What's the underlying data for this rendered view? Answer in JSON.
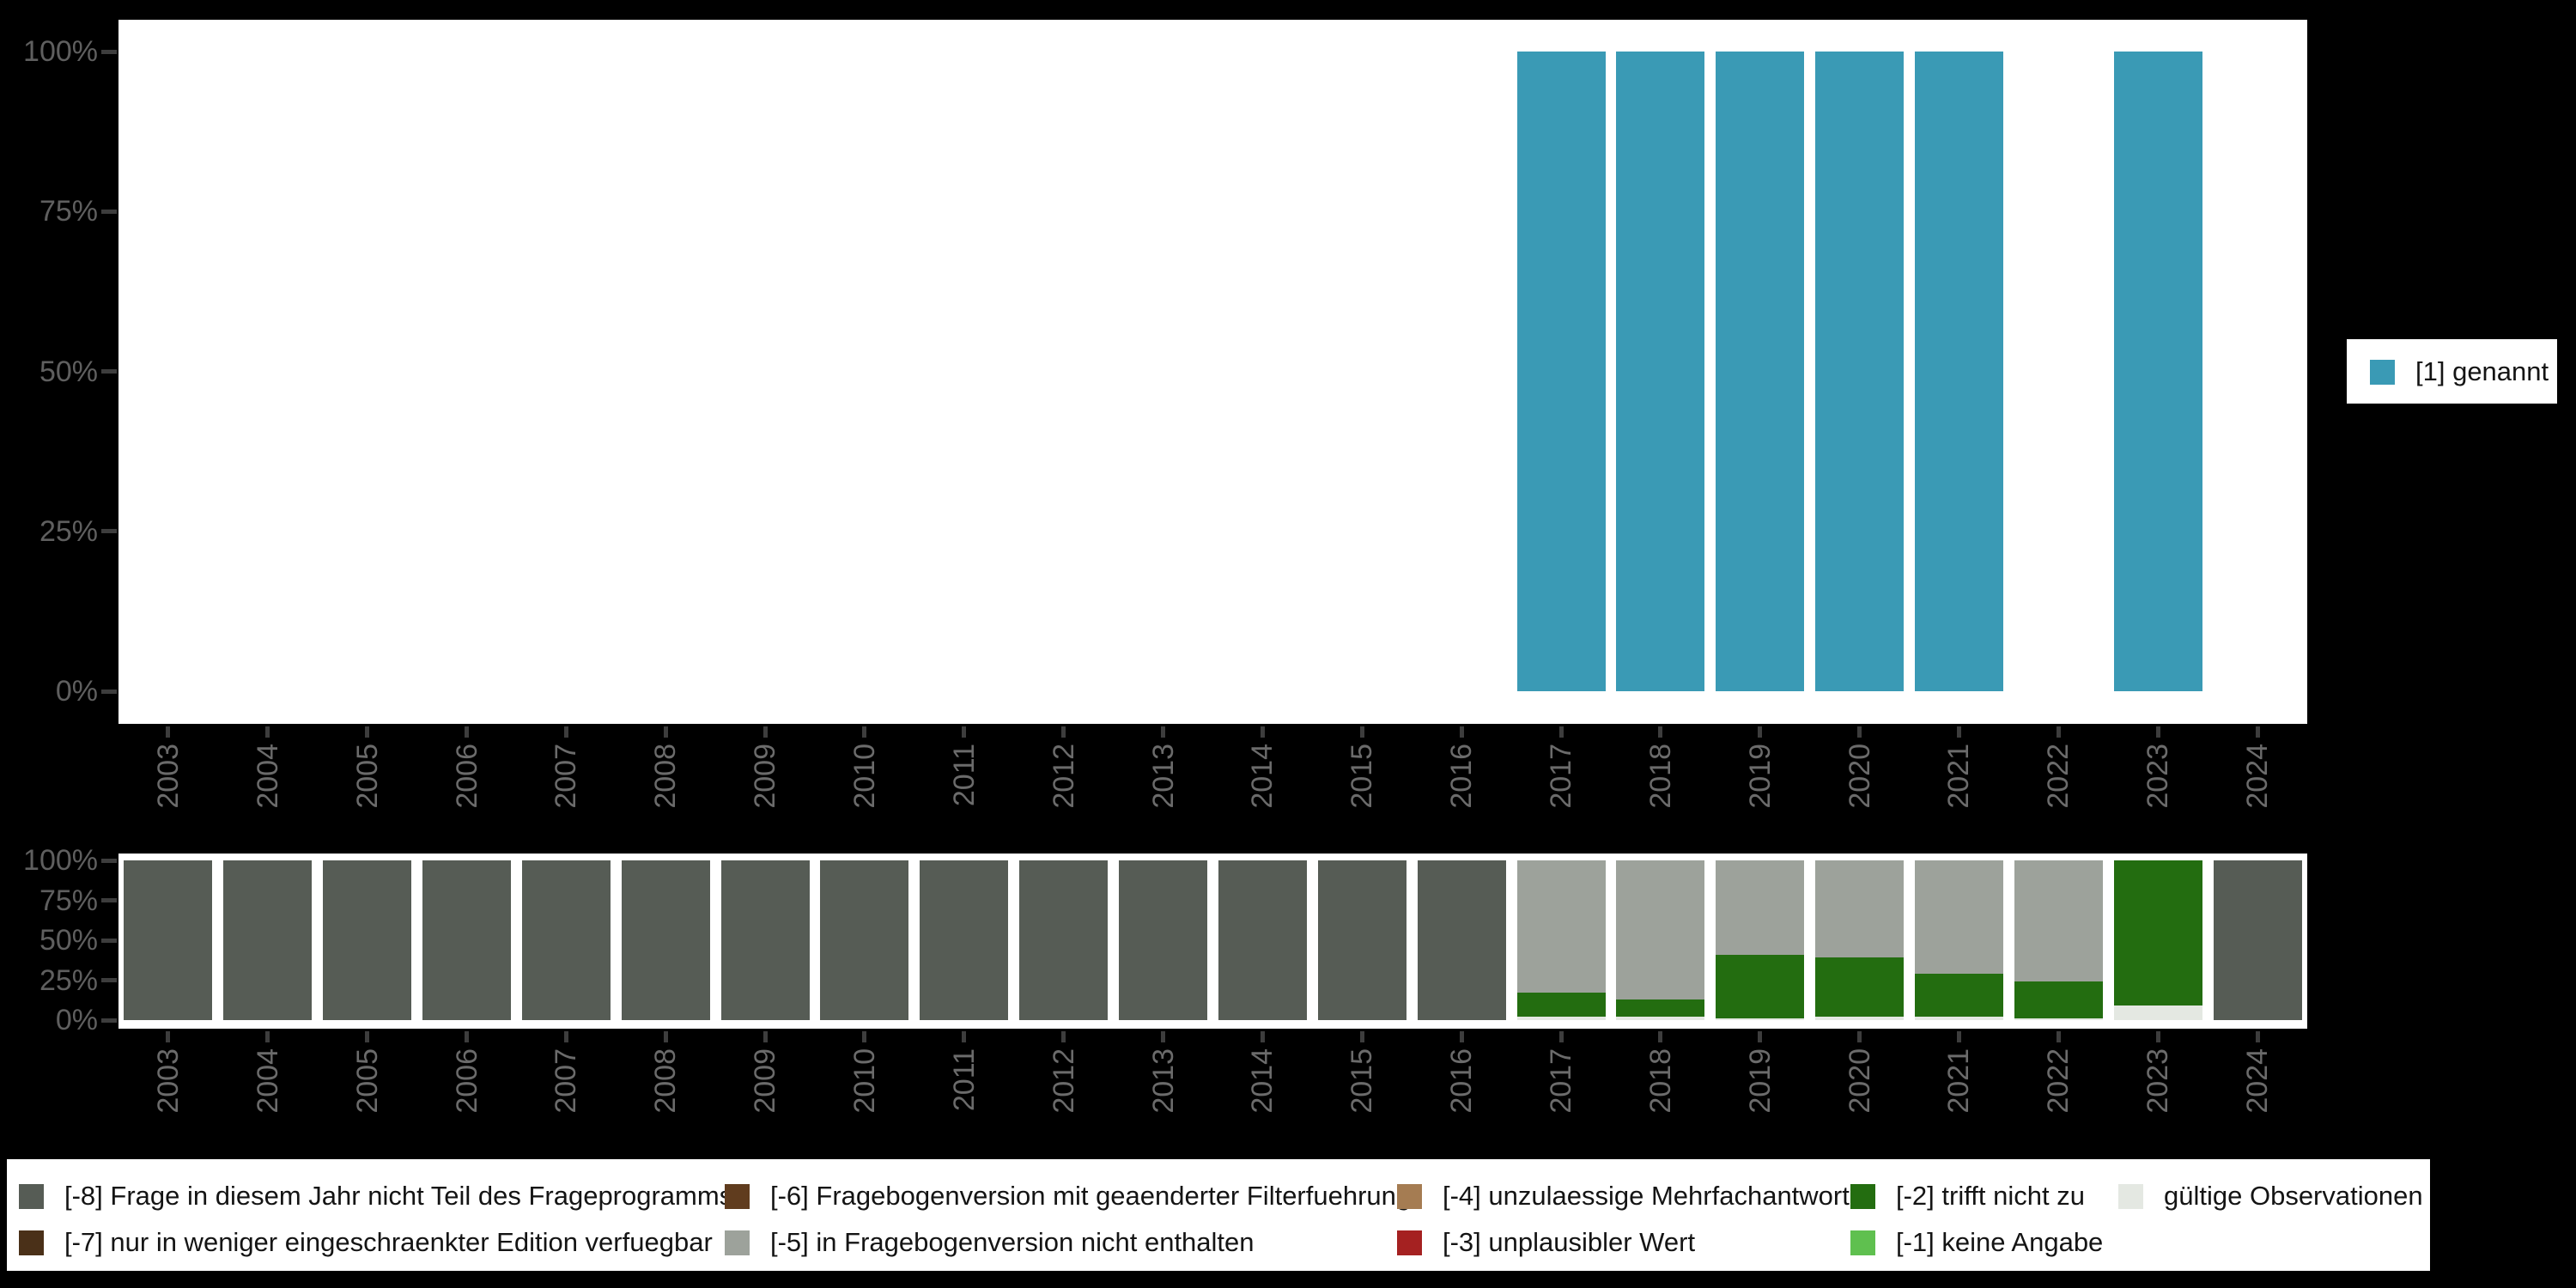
{
  "background": "#000000",
  "palette": {
    "genannt": "#3a9ab5",
    "code_m8": "#565c55",
    "code_m7": "#4a3018",
    "code_m6": "#603c1e",
    "code_m5": "#9da29b",
    "code_m4": "#a57c52",
    "code_m3": "#a52121",
    "code_m2": "#236d10",
    "code_m1": "#5fc04f",
    "valid": "#e4e8e2",
    "axis_text": "#6b6b6b",
    "tick": "#3d3d3d"
  },
  "years": [
    "2003",
    "2004",
    "2005",
    "2006",
    "2007",
    "2008",
    "2009",
    "2010",
    "2011",
    "2012",
    "2013",
    "2014",
    "2015",
    "2016",
    "2017",
    "2018",
    "2019",
    "2020",
    "2021",
    "2022",
    "2023",
    "2024"
  ],
  "yticks": [
    "0%",
    "25%",
    "50%",
    "75%",
    "100%"
  ],
  "legend_top": {
    "label": "[1] genannt",
    "color_key": "genannt"
  },
  "chart_data": [
    {
      "type": "bar",
      "title": "",
      "categories": [
        "2003",
        "2004",
        "2005",
        "2006",
        "2007",
        "2008",
        "2009",
        "2010",
        "2011",
        "2012",
        "2013",
        "2014",
        "2015",
        "2016",
        "2017",
        "2018",
        "2019",
        "2020",
        "2021",
        "2022",
        "2023",
        "2024"
      ],
      "series": [
        {
          "name": "[1] genannt",
          "color_key": "genannt",
          "values": [
            0,
            0,
            0,
            0,
            0,
            0,
            0,
            0,
            0,
            0,
            0,
            0,
            0,
            0,
            100,
            100,
            100,
            100,
            100,
            0,
            100,
            0
          ]
        }
      ],
      "xlabel": "",
      "ylabel": "",
      "ylim": [
        0,
        100
      ],
      "ytick_labels": [
        "0%",
        "25%",
        "50%",
        "75%",
        "100%"
      ],
      "grid": false,
      "legend_position": "right"
    },
    {
      "type": "stacked_bar",
      "title": "",
      "categories": [
        "2003",
        "2004",
        "2005",
        "2006",
        "2007",
        "2008",
        "2009",
        "2010",
        "2011",
        "2012",
        "2013",
        "2014",
        "2015",
        "2016",
        "2017",
        "2018",
        "2019",
        "2020",
        "2021",
        "2022",
        "2023",
        "2024"
      ],
      "series": [
        {
          "name": "gültige Observationen",
          "color_key": "valid",
          "values": [
            0,
            0,
            0,
            0,
            0,
            0,
            0,
            0,
            0,
            0,
            0,
            0,
            0,
            0,
            2,
            2,
            1,
            2,
            2,
            1,
            9,
            0
          ]
        },
        {
          "name": "[-2] trifft nicht zu",
          "color_key": "code_m2",
          "values": [
            0,
            0,
            0,
            0,
            0,
            0,
            0,
            0,
            0,
            0,
            0,
            0,
            0,
            0,
            15,
            11,
            40,
            37,
            27,
            23,
            91,
            0
          ]
        },
        {
          "name": "[-5] in Fragebogenversion nicht enthalten",
          "color_key": "code_m5",
          "values": [
            0,
            0,
            0,
            0,
            0,
            0,
            0,
            0,
            0,
            0,
            0,
            0,
            0,
            0,
            83,
            87,
            59,
            61,
            71,
            76,
            0,
            0
          ]
        },
        {
          "name": "[-8] Frage in diesem Jahr nicht Teil des Frageprogramms",
          "color_key": "code_m8",
          "values": [
            100,
            100,
            100,
            100,
            100,
            100,
            100,
            100,
            100,
            100,
            100,
            100,
            100,
            100,
            0,
            0,
            0,
            0,
            0,
            0,
            0,
            100
          ]
        }
      ],
      "xlabel": "",
      "ylabel": "",
      "ylim": [
        0,
        100
      ],
      "ytick_labels": [
        "0%",
        "25%",
        "50%",
        "75%",
        "100%"
      ],
      "grid": false,
      "legend_position": "bottom"
    }
  ],
  "legend_bottom": {
    "entries": [
      {
        "label": "[-8] Frage in diesem Jahr nicht Teil des Frageprogramms",
        "color_key": "code_m8",
        "col": 0,
        "row": 0
      },
      {
        "label": "[-7] nur in weniger eingeschraenkter Edition verfuegbar",
        "color_key": "code_m7",
        "col": 0,
        "row": 1
      },
      {
        "label": "[-6] Fragebogenversion mit geaenderter Filterfuehrung",
        "color_key": "code_m6",
        "col": 1,
        "row": 0
      },
      {
        "label": "[-5] in Fragebogenversion nicht enthalten",
        "color_key": "code_m5",
        "col": 1,
        "row": 1
      },
      {
        "label": "[-4] unzulaessige Mehrfachantwort",
        "color_key": "code_m4",
        "col": 2,
        "row": 0
      },
      {
        "label": "[-3] unplausibler Wert",
        "color_key": "code_m3",
        "col": 2,
        "row": 1
      },
      {
        "label": "[-2] trifft nicht zu",
        "color_key": "code_m2",
        "col": 3,
        "row": 0
      },
      {
        "label": "[-1] keine Angabe",
        "color_key": "code_m1",
        "col": 3,
        "row": 1
      },
      {
        "label": "gültige Observationen",
        "color_key": "valid",
        "col": 4,
        "row": 0
      }
    ]
  }
}
